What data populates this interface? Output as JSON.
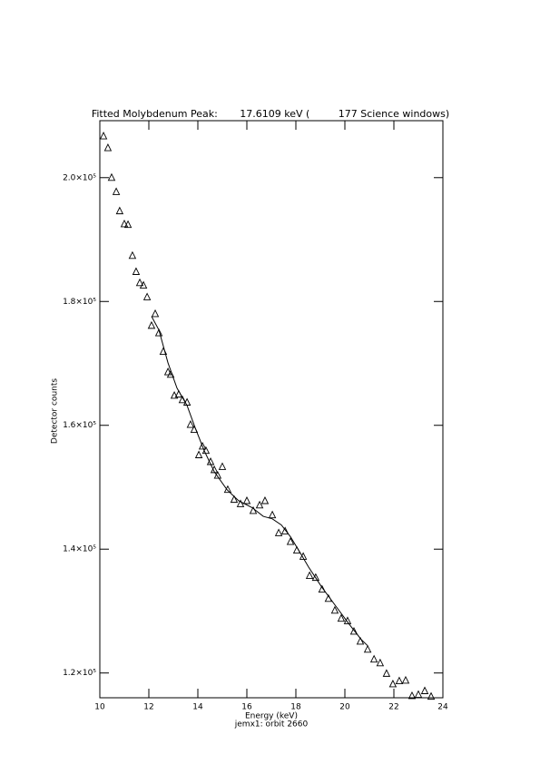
{
  "chart_data": {
    "type": "scatter",
    "title": "Fitted Molybdenum Peak:       17.6109 keV (         177 Science windows)",
    "x_label": "Energy (keV)",
    "subtitle": "jemx1: orbit 2660",
    "y_label": "Detector counts",
    "xlim": [
      10,
      24
    ],
    "xticks": [
      10,
      12,
      14,
      16,
      18,
      20,
      22,
      24
    ],
    "ylim": [
      116000,
      209200
    ],
    "yticks": [
      {
        "value": 120000,
        "label": "1.2×10⁵"
      },
      {
        "value": 140000,
        "label": "1.4×10⁵"
      },
      {
        "value": 160000,
        "label": "1.6×10⁵"
      },
      {
        "value": 180000,
        "label": "1.8×10⁵"
      },
      {
        "value": 200000,
        "label": "2.0×10⁵"
      }
    ],
    "series": [
      {
        "marker": "triangle",
        "color": "#000000",
        "x": [
          10.15,
          10.33,
          10.48,
          10.67,
          10.81,
          11.0,
          11.15,
          11.33,
          11.48,
          11.63,
          11.78,
          11.93,
          12.11,
          12.26,
          12.41,
          12.59,
          12.78,
          12.89,
          13.04,
          13.22,
          13.37,
          13.56,
          13.7,
          13.85,
          14.04,
          14.19,
          14.33,
          14.52,
          14.67,
          14.81,
          15.0,
          15.22,
          15.48,
          15.74,
          16.0,
          16.26,
          16.52,
          16.74,
          17.04,
          17.3,
          17.56,
          17.78,
          18.04,
          18.3,
          18.56,
          18.81,
          19.07,
          19.33,
          19.59,
          19.85,
          20.11,
          20.37,
          20.63,
          20.93,
          21.19,
          21.44,
          21.7,
          21.96,
          22.22,
          22.48,
          22.74,
          23.0,
          23.26,
          23.52
        ],
        "values": [
          206700,
          204800,
          200000,
          197700,
          194600,
          192500,
          192400,
          187400,
          184800,
          183000,
          182600,
          180700,
          176100,
          178000,
          174900,
          171900,
          168600,
          168200,
          164800,
          165000,
          164100,
          163700,
          160100,
          159300,
          155200,
          156600,
          155900,
          154100,
          152800,
          151900,
          153300,
          149600,
          148000,
          147300,
          147800,
          146200,
          147100,
          147800,
          145500,
          142600,
          142900,
          141200,
          139800,
          138800,
          135700,
          135400,
          133500,
          132000,
          130100,
          128800,
          128400,
          126700,
          125100,
          123800,
          122200,
          121600,
          119900,
          118200,
          118700,
          118800,
          116300,
          116500,
          117100,
          116200
        ]
      },
      {
        "marker": "line",
        "color": "#000000",
        "x": [
          12.11,
          12.41,
          12.78,
          13.15,
          13.56,
          13.89,
          14.26,
          14.67,
          15.19,
          15.67,
          16.22,
          16.67,
          17.04,
          17.41,
          17.78,
          18.15,
          18.52,
          19.07,
          19.63,
          20.19,
          20.67,
          20.93
        ],
        "values": [
          177600,
          175400,
          170100,
          166000,
          163200,
          159600,
          155900,
          152500,
          149600,
          147800,
          146700,
          145300,
          144900,
          143900,
          142000,
          139600,
          137100,
          133800,
          130800,
          127800,
          125400,
          124400
        ]
      }
    ]
  }
}
